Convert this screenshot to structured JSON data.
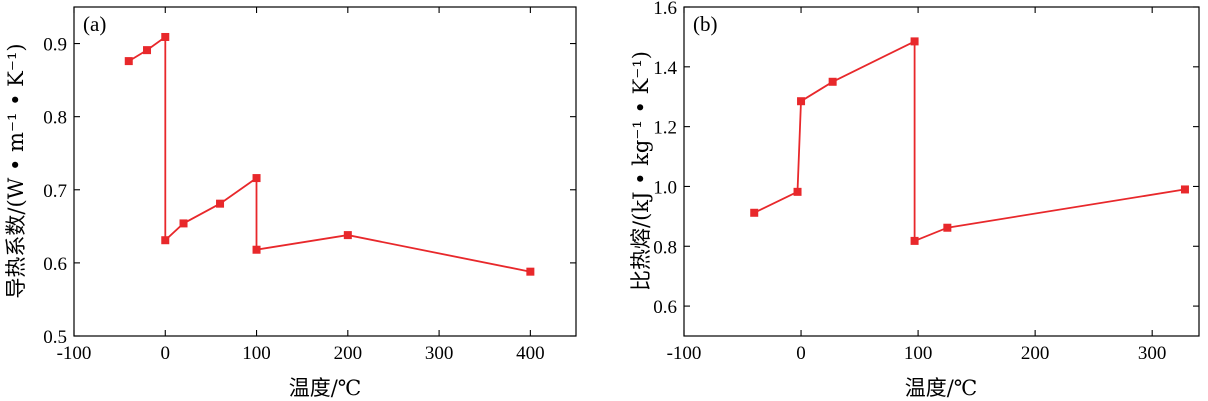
{
  "colors": {
    "series": "#e8282b",
    "axis": "#000000"
  },
  "chart_data": [
    {
      "type": "line",
      "panel_label": "(a)",
      "xlabel": "温度/℃",
      "ylabel": "导热系数/(W • m⁻¹ • K⁻¹)",
      "xlim": [
        -100,
        450
      ],
      "ylim": [
        0.5,
        0.95
      ],
      "xticks": [
        -100,
        0,
        100,
        200,
        300,
        400
      ],
      "yticks": [
        0.5,
        0.6,
        0.7,
        0.8,
        0.9
      ],
      "grid": false,
      "series": [
        {
          "x": [
            -40,
            -20,
            0,
            0,
            20,
            60,
            100,
            100,
            200,
            400
          ],
          "y": [
            0.876,
            0.891,
            0.909,
            0.631,
            0.654,
            0.681,
            0.716,
            0.618,
            0.638,
            0.588
          ]
        }
      ]
    },
    {
      "type": "line",
      "panel_label": "(b)",
      "xlabel": "温度/℃",
      "ylabel": "比热熔/(kJ • kg⁻¹ • K⁻¹)",
      "xlim": [
        -100,
        340
      ],
      "ylim": [
        0.5,
        1.6
      ],
      "xticks": [
        -100,
        0,
        100,
        200,
        300
      ],
      "yticks": [
        0.6,
        0.8,
        1.0,
        1.2,
        1.4,
        1.6
      ],
      "ytick_labels": [
        "0.6",
        "0.8",
        "1.0",
        "1.2",
        "1.4",
        "1.6"
      ],
      "grid": false,
      "series": [
        {
          "x": [
            -40,
            -3,
            0,
            27,
            97,
            97,
            125,
            328
          ],
          "y": [
            0.912,
            0.982,
            1.285,
            1.35,
            1.485,
            0.818,
            0.862,
            0.99
          ]
        }
      ]
    }
  ]
}
